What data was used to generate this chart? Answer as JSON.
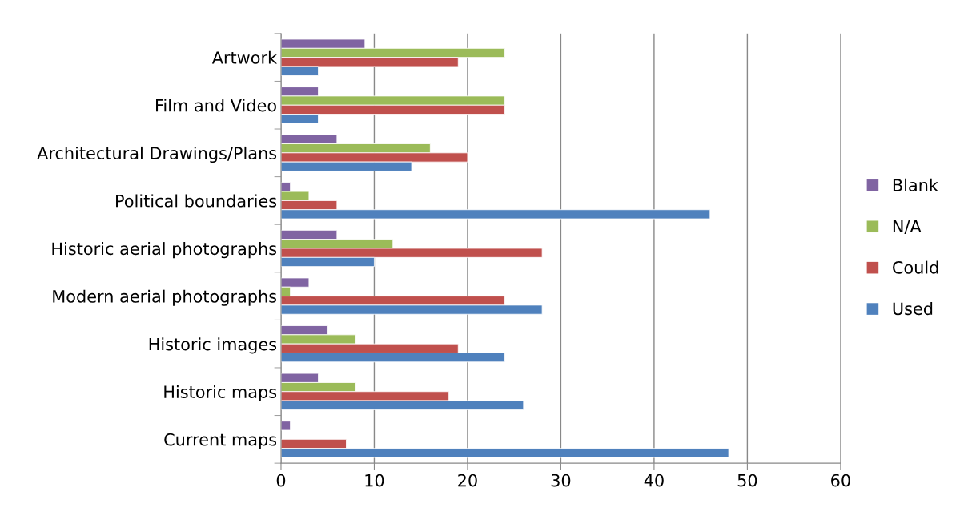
{
  "chart_data": {
    "type": "bar",
    "orientation": "horizontal",
    "categories": [
      "Artwork",
      "Film and Video",
      "Architectural Drawings/Plans",
      "Political boundaries",
      "Historic aerial photographs",
      "Modern aerial photographs",
      "Historic images",
      "Historic maps",
      "Current maps"
    ],
    "series": [
      {
        "name": "Blank",
        "color": "#8064a2",
        "values": [
          9,
          4,
          6,
          1,
          6,
          3,
          5,
          4,
          1
        ]
      },
      {
        "name": "N/A",
        "color": "#9bbb59",
        "values": [
          24,
          24,
          16,
          3,
          12,
          1,
          8,
          8,
          null
        ]
      },
      {
        "name": "Could",
        "color": "#c0504d",
        "values": [
          19,
          24,
          20,
          6,
          28,
          24,
          19,
          18,
          7
        ]
      },
      {
        "name": "Used",
        "color": "#4f81bd",
        "values": [
          4,
          4,
          14,
          46,
          10,
          28,
          24,
          26,
          48
        ]
      }
    ],
    "xlim": [
      0,
      60
    ],
    "xticks": [
      0,
      10,
      20,
      30,
      40,
      50,
      60
    ],
    "grid": "x",
    "legend": "right"
  }
}
